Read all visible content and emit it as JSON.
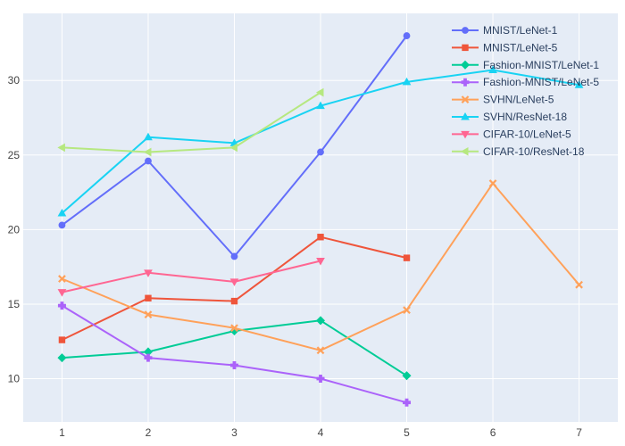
{
  "chart_data": {
    "type": "line",
    "title": "",
    "xlabel": "",
    "ylabel": "",
    "xlim": [
      0.55,
      7.45
    ],
    "ylim": [
      7.1,
      34.5
    ],
    "x_ticks": [
      1,
      2,
      3,
      4,
      5,
      6,
      7
    ],
    "y_ticks": [
      10,
      15,
      20,
      25,
      30
    ],
    "grid": true,
    "legend_position": "top-right",
    "colors": {
      "plot_background": "#E5ECF6",
      "grid": "#FFFFFF",
      "page_background": "#FFFFFF"
    },
    "series": [
      {
        "name": "MNIST/LeNet-1",
        "color": "#636EFA",
        "marker": "circle",
        "x": [
          1,
          2,
          3,
          4,
          5
        ],
        "y": [
          20.3,
          24.6,
          18.2,
          25.2,
          33.0
        ]
      },
      {
        "name": "MNIST/LeNet-5",
        "color": "#EF553B",
        "marker": "square",
        "x": [
          1,
          2,
          3,
          4,
          5
        ],
        "y": [
          12.6,
          15.4,
          15.2,
          19.5,
          18.1
        ]
      },
      {
        "name": "Fashion-MNIST/LeNet-1",
        "color": "#00CC96",
        "marker": "diamond",
        "x": [
          1,
          2,
          3,
          4,
          5
        ],
        "y": [
          11.4,
          11.8,
          13.2,
          13.9,
          10.2
        ]
      },
      {
        "name": "Fashion-MNIST/LeNet-5",
        "color": "#AB63FA",
        "marker": "cross",
        "x": [
          1,
          2,
          3,
          4,
          5
        ],
        "y": [
          14.9,
          11.4,
          10.9,
          10.0,
          8.4
        ]
      },
      {
        "name": "SVHN/LeNet-5",
        "color": "#FFA15A",
        "marker": "x",
        "x": [
          1,
          2,
          3,
          4,
          5,
          6,
          7
        ],
        "y": [
          16.7,
          14.3,
          13.4,
          11.9,
          14.6,
          23.1,
          16.3
        ]
      },
      {
        "name": "SVHN/ResNet-18",
        "color": "#19D3F3",
        "marker": "triangle-up",
        "x": [
          1,
          2,
          3,
          4,
          5,
          6,
          7
        ],
        "y": [
          21.1,
          26.2,
          25.8,
          28.3,
          29.9,
          30.7,
          29.7
        ]
      },
      {
        "name": "CIFAR-10/LeNet-5",
        "color": "#FF6692",
        "marker": "triangle-down",
        "x": [
          1,
          2,
          3,
          4
        ],
        "y": [
          15.8,
          17.1,
          16.5,
          17.9
        ]
      },
      {
        "name": "CIFAR-10/ResNet-18",
        "color": "#B6E880",
        "marker": "triangle-left",
        "x": [
          1,
          2,
          3,
          4
        ],
        "y": [
          25.5,
          25.2,
          25.5,
          29.2
        ]
      }
    ]
  }
}
